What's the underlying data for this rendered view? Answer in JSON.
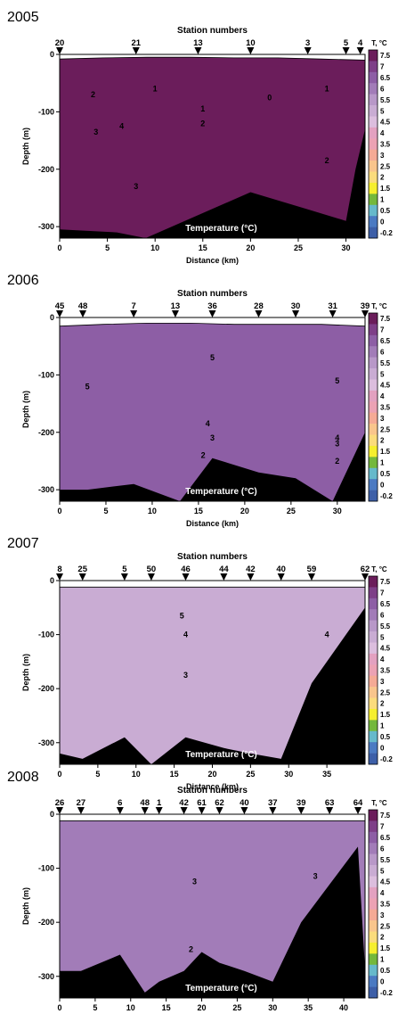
{
  "colorbar": {
    "title": "T, °C",
    "labels": [
      "7.5",
      "7",
      "6.5",
      "6",
      "5.5",
      "5",
      "4.5",
      "4",
      "3.5",
      "3",
      "2.5",
      "2",
      "1.5",
      "1",
      "0.5",
      "0",
      "-0.2"
    ],
    "colors": [
      "#6b1d5b",
      "#7e3f88",
      "#8d5ea5",
      "#a27cb8",
      "#b898c8",
      "#c9acd3",
      "#dcbede",
      "#e3a1c0",
      "#eca2b4",
      "#f5aa95",
      "#f9c58c",
      "#fbdc7c",
      "#f6ef2e",
      "#74b83c",
      "#66b9cb",
      "#4b7ac2",
      "#3d5fa8"
    ]
  },
  "chart_data": [
    {
      "type": "heatmap",
      "year": "2005",
      "title": "Station numbers",
      "xlabel": "Distance (km)",
      "ylabel": "Depth (m)",
      "annotation": "Temperature (°C)",
      "xlim": [
        0,
        32
      ],
      "ylim": [
        -320,
        0
      ],
      "xticks": [
        "0",
        "5",
        "10",
        "15",
        "20",
        "25",
        "30"
      ],
      "yticks": [
        "0",
        "-100",
        "-200",
        "-300"
      ],
      "stations": [
        {
          "label": "20",
          "x": 0
        },
        {
          "label": "21",
          "x": 8
        },
        {
          "label": "13",
          "x": 14.5
        },
        {
          "label": "10",
          "x": 20
        },
        {
          "label": "3",
          "x": 26
        },
        {
          "label": "5",
          "x": 30
        },
        {
          "label": "4",
          "x": 31.5
        }
      ],
      "layers": [
        {
          "t": 3,
          "d": [
            -320,
            -320,
            -320,
            -320,
            -320,
            -320,
            -320,
            -320
          ]
        },
        {
          "t": 1.5,
          "d": [
            -320,
            -320,
            -320,
            -320,
            -320,
            -320,
            -320,
            -320
          ]
        },
        {
          "t": 2.5,
          "d": [
            -230,
            -235,
            -225,
            -140,
            -120,
            -115,
            -110,
            -100
          ]
        },
        {
          "t": 3.5,
          "d": [
            -150,
            -150,
            -135,
            -110,
            -105,
            -100,
            -95,
            -90
          ]
        },
        {
          "t": 1,
          "d": [
            -95,
            -88,
            -80,
            -125,
            -130,
            -125,
            -115,
            -95
          ]
        },
        {
          "t": 0.5,
          "d": [
            -45,
            -45,
            -42,
            -45,
            -100,
            -110,
            -85,
            -60
          ]
        },
        {
          "t": 6,
          "d": [
            -40,
            -32,
            -30,
            -30,
            -35,
            -38,
            -40,
            -42
          ]
        },
        {
          "t": 6.5,
          "d": [
            -22,
            -18,
            -15,
            -15,
            -18,
            -20,
            -22,
            -25
          ]
        },
        {
          "t": 7.5,
          "d": [
            -8,
            -6,
            -5,
            -5,
            -6,
            -6,
            -8,
            -10
          ]
        }
      ],
      "seabed": [
        [
          0,
          -305
        ],
        [
          6,
          -310
        ],
        [
          9,
          -320
        ],
        [
          20,
          -240
        ],
        [
          26,
          -270
        ],
        [
          30,
          -290
        ],
        [
          31,
          -200
        ],
        [
          32,
          -130
        ]
      ],
      "isotherm_labels": [
        {
          "text": "2",
          "x": 3.5,
          "d": -70
        },
        {
          "text": "3",
          "x": 3.8,
          "d": -135
        },
        {
          "text": "4",
          "x": 6.5,
          "d": -125
        },
        {
          "text": "1",
          "x": 10,
          "d": -60
        },
        {
          "text": "1",
          "x": 15,
          "d": -95
        },
        {
          "text": "2",
          "x": 15,
          "d": -120
        },
        {
          "text": "0",
          "x": 22,
          "d": -75
        },
        {
          "text": "1",
          "x": 28,
          "d": -60
        },
        {
          "text": "3",
          "x": 8,
          "d": -230
        },
        {
          "text": "2",
          "x": 28,
          "d": -185
        }
      ]
    },
    {
      "type": "heatmap",
      "year": "2006",
      "title": "Station numbers",
      "xlabel": "Distance (km)",
      "ylabel": "Depth (m)",
      "annotation": "Temperature (°C)",
      "xlim": [
        0,
        33
      ],
      "ylim": [
        -320,
        0
      ],
      "xticks": [
        "0",
        "5",
        "10",
        "15",
        "20",
        "25",
        "30"
      ],
      "yticks": [
        "0",
        "-100",
        "-200",
        "-300"
      ],
      "stations": [
        {
          "label": "45",
          "x": 0
        },
        {
          "label": "48",
          "x": 2.5
        },
        {
          "label": "7",
          "x": 8
        },
        {
          "label": "13",
          "x": 12.5
        },
        {
          "label": "36",
          "x": 16.5
        },
        {
          "label": "28",
          "x": 21.5
        },
        {
          "label": "30",
          "x": 25.5
        },
        {
          "label": "31",
          "x": 29.5
        },
        {
          "label": "39",
          "x": 33
        }
      ],
      "layers": [
        {
          "t": 2,
          "d": [
            -320,
            -320,
            -320,
            -320,
            -320,
            -320,
            -320,
            -320
          ]
        },
        {
          "t": 1.5,
          "d": [
            -240,
            -245,
            -250,
            -250,
            -252,
            -255,
            -255,
            -250
          ]
        },
        {
          "t": 2.5,
          "d": [
            -225,
            -228,
            -230,
            -230,
            -235,
            -235,
            -240,
            -240
          ]
        },
        {
          "t": 3.5,
          "d": [
            -200,
            -205,
            -205,
            -205,
            -210,
            -210,
            -215,
            -215
          ]
        },
        {
          "t": 4,
          "d": [
            -180,
            -185,
            -185,
            -185,
            -190,
            -190,
            -190,
            -195
          ]
        },
        {
          "t": 5.5,
          "d": [
            -130,
            -125,
            -120,
            -100,
            -110,
            -120,
            -115,
            -110
          ]
        },
        {
          "t": 6,
          "d": [
            -85,
            -80,
            -75,
            -70,
            -75,
            -80,
            -80,
            -80
          ]
        },
        {
          "t": 7,
          "d": [
            -45,
            -40,
            -40,
            -35,
            -45,
            -40,
            -40,
            -45
          ]
        },
        {
          "t": 6.5,
          "d": [
            -15,
            -12,
            -10,
            -10,
            -12,
            -12,
            -12,
            -15
          ]
        }
      ],
      "seabed": [
        [
          0,
          -300
        ],
        [
          3,
          -300
        ],
        [
          8,
          -290
        ],
        [
          13,
          -320
        ],
        [
          16.5,
          -245
        ],
        [
          21.5,
          -270
        ],
        [
          25.5,
          -280
        ],
        [
          29.5,
          -320
        ],
        [
          33,
          -200
        ]
      ],
      "isotherm_labels": [
        {
          "text": "5",
          "x": 16.5,
          "d": -70
        },
        {
          "text": "5",
          "x": 30,
          "d": -110
        },
        {
          "text": "5",
          "x": 3,
          "d": -120
        },
        {
          "text": "4",
          "x": 16,
          "d": -185
        },
        {
          "text": "3",
          "x": 16.5,
          "d": -210
        },
        {
          "text": "4",
          "x": 30,
          "d": -210
        },
        {
          "text": "3",
          "x": 30,
          "d": -220
        },
        {
          "text": "2",
          "x": 15.5,
          "d": -240
        },
        {
          "text": "2",
          "x": 30,
          "d": -250
        }
      ]
    },
    {
      "type": "heatmap",
      "year": "2007",
      "title": "Station numbers",
      "xlabel": "Distance (km)",
      "ylabel": "Depth (m)",
      "annotation": "Temperature (°C)",
      "xlim": [
        0,
        40
      ],
      "ylim": [
        -340,
        0
      ],
      "xticks": [
        "0",
        "5",
        "10",
        "15",
        "20",
        "25",
        "30",
        "35"
      ],
      "yticks": [
        "0",
        "-100",
        "-200",
        "-300"
      ],
      "stations": [
        {
          "label": "8",
          "x": 0
        },
        {
          "label": "25",
          "x": 3
        },
        {
          "label": "5",
          "x": 8.5
        },
        {
          "label": "50",
          "x": 12
        },
        {
          "label": "46",
          "x": 16.5
        },
        {
          "label": "44",
          "x": 21.5
        },
        {
          "label": "42",
          "x": 25
        },
        {
          "label": "40",
          "x": 29
        },
        {
          "label": "59",
          "x": 33
        },
        {
          "label": "62",
          "x": 40
        }
      ],
      "layers": [
        {
          "t": 1.5,
          "d": [
            -340,
            -340,
            -340,
            -340,
            -340,
            -340,
            -340,
            -340
          ]
        },
        {
          "t": 2,
          "d": [
            -290,
            -290,
            -290,
            -290,
            -290,
            -290,
            -290,
            -290
          ]
        },
        {
          "t": 2.5,
          "d": [
            -260,
            -260,
            -260,
            -265,
            -265,
            -265,
            -265,
            -265
          ]
        },
        {
          "t": 3,
          "d": [
            -180,
            -185,
            -190,
            -190,
            -200,
            -200,
            -200,
            -200
          ]
        },
        {
          "t": 3.5,
          "d": [
            -105,
            -105,
            -110,
            -115,
            -120,
            -120,
            -115,
            -110
          ]
        },
        {
          "t": 4,
          "d": [
            -75,
            -80,
            -85,
            -85,
            -90,
            -85,
            -80,
            -75
          ]
        },
        {
          "t": 5.5,
          "d": [
            -60,
            -65,
            -70,
            -60,
            -55,
            -55,
            -55,
            -55
          ]
        },
        {
          "t": 6.5,
          "d": [
            -30,
            -35,
            -40,
            -35,
            -30,
            -30,
            -28,
            -28
          ]
        },
        {
          "t": 5,
          "d": [
            -12,
            -12,
            -12,
            -12,
            -12,
            -12,
            -12,
            -12
          ]
        }
      ],
      "seabed": [
        [
          0,
          -320
        ],
        [
          3,
          -330
        ],
        [
          8.5,
          -290
        ],
        [
          12,
          -340
        ],
        [
          16.5,
          -290
        ],
        [
          21.5,
          -310
        ],
        [
          25,
          -320
        ],
        [
          29,
          -330
        ],
        [
          33,
          -190
        ],
        [
          40,
          -50
        ]
      ],
      "isotherm_labels": [
        {
          "text": "5",
          "x": 16,
          "d": -65
        },
        {
          "text": "4",
          "x": 16.5,
          "d": -100
        },
        {
          "text": "4",
          "x": 35,
          "d": -100
        },
        {
          "text": "3",
          "x": 16.5,
          "d": -175
        }
      ]
    },
    {
      "type": "heatmap",
      "year": "2008",
      "title": "Station numbers",
      "xlabel": "Distance (km)",
      "ylabel": "Depth (m)",
      "annotation": "Temperature (°C)",
      "xlim": [
        0,
        43
      ],
      "ylim": [
        -340,
        0
      ],
      "xticks": [
        "0",
        "5",
        "10",
        "15",
        "20",
        "25",
        "30",
        "35",
        "40"
      ],
      "yticks": [
        "0",
        "-100",
        "-200",
        "-300"
      ],
      "stations": [
        {
          "label": "26",
          "x": 0
        },
        {
          "label": "27",
          "x": 3
        },
        {
          "label": "6",
          "x": 8.5
        },
        {
          "label": "48",
          "x": 12
        },
        {
          "label": "1",
          "x": 14
        },
        {
          "label": "42",
          "x": 17.5
        },
        {
          "label": "61",
          "x": 20
        },
        {
          "label": "62",
          "x": 22.5
        },
        {
          "label": "40",
          "x": 26
        },
        {
          "label": "37",
          "x": 30
        },
        {
          "label": "39",
          "x": 34
        },
        {
          "label": "63",
          "x": 38
        },
        {
          "label": "64",
          "x": 42
        }
      ],
      "layers": [
        {
          "t": 0.5,
          "d": [
            -340,
            -340,
            -340,
            -340,
            -340,
            -340,
            -340,
            -340
          ]
        },
        {
          "t": 1,
          "d": [
            -300,
            -300,
            -300,
            -300,
            -300,
            -300,
            -300,
            -300
          ]
        },
        {
          "t": 1.5,
          "d": [
            -250,
            -245,
            -235,
            -235,
            -235,
            -245,
            -250,
            -250
          ]
        },
        {
          "t": 2,
          "d": [
            -230,
            -225,
            -220,
            -220,
            -220,
            -225,
            -230,
            -230
          ]
        },
        {
          "t": 2.5,
          "d": [
            -195,
            -190,
            -185,
            -180,
            -180,
            -185,
            -190,
            -190
          ]
        },
        {
          "t": 3,
          "d": [
            -150,
            -150,
            -160,
            -150,
            -130,
            -140,
            -145,
            -145
          ]
        },
        {
          "t": 3.5,
          "d": [
            -100,
            -100,
            -105,
            -110,
            -90,
            -100,
            -100,
            -100
          ]
        },
        {
          "t": 4,
          "d": [
            -50,
            -50,
            -55,
            -60,
            -50,
            -50,
            -50,
            -50
          ]
        },
        {
          "t": 5,
          "d": [
            -25,
            -25,
            -28,
            -30,
            -25,
            -25,
            -25,
            -25
          ]
        },
        {
          "t": 6,
          "d": [
            -12,
            -12,
            -12,
            -12,
            -12,
            -12,
            -12,
            -12
          ]
        }
      ],
      "seabed": [
        [
          0,
          -290
        ],
        [
          3,
          -290
        ],
        [
          8.5,
          -260
        ],
        [
          12,
          -330
        ],
        [
          14,
          -310
        ],
        [
          17.5,
          -290
        ],
        [
          20,
          -255
        ],
        [
          22.5,
          -275
        ],
        [
          26,
          -290
        ],
        [
          30,
          -310
        ],
        [
          34,
          -200
        ],
        [
          38,
          -130
        ],
        [
          42,
          -60
        ]
      ],
      "isotherm_labels": [
        {
          "text": "3",
          "x": 19,
          "d": -125
        },
        {
          "text": "3",
          "x": 36,
          "d": -115
        },
        {
          "text": "2",
          "x": 18.5,
          "d": -250
        }
      ]
    }
  ]
}
